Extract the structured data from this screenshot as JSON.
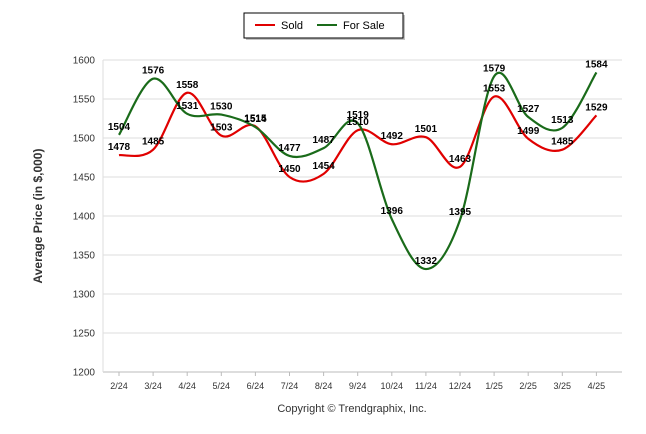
{
  "chart_data": {
    "type": "line",
    "categories": [
      "2/24",
      "3/24",
      "4/24",
      "5/24",
      "6/24",
      "7/24",
      "8/24",
      "9/24",
      "10/24",
      "11/24",
      "12/24",
      "1/25",
      "2/25",
      "3/25",
      "4/25"
    ],
    "series": [
      {
        "name": "Sold",
        "color": "#e00000",
        "values": [
          1478,
          1485,
          1558,
          1503,
          1515,
          1450,
          1454,
          1510,
          1492,
          1501,
          1463,
          1553,
          1499,
          1485,
          1529
        ]
      },
      {
        "name": "For Sale",
        "color": "#1a6b1a",
        "values": [
          1504,
          1576,
          1531,
          1530,
          1514,
          1477,
          1487,
          1519,
          1396,
          1332,
          1395,
          1579,
          1527,
          1513,
          1584
        ]
      }
    ],
    "ylabel": "Average Price (in $,000)",
    "ylim": [
      1200,
      1600
    ],
    "yticks": [
      "1200",
      "1250",
      "1300",
      "1350",
      "1400",
      "1450",
      "1500",
      "1550",
      "1600"
    ],
    "grid": true,
    "legend_position": "top-center",
    "smooth": true,
    "data_labels": true
  },
  "footer": {
    "copyright": "Copyright © Trendgraphix, Inc."
  }
}
